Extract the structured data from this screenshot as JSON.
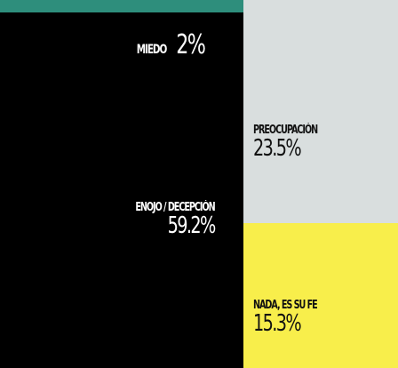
{
  "chart_data": {
    "type": "treemap",
    "title": "",
    "unit": "%",
    "items": [
      {
        "label": "MIEDO",
        "value": 2,
        "value_text": "2%",
        "color": "#2e8e7c",
        "text_color": "#ffffff"
      },
      {
        "label": "ENOJO / DECEPCIÓN",
        "value": 59.2,
        "value_text": "59.2%",
        "color": "#000000",
        "text_color": "#ffffff"
      },
      {
        "label": "PREOCUPACIÓN",
        "value": 23.5,
        "value_text": "23.5%",
        "color": "#d9dede",
        "text_color": "#111111"
      },
      {
        "label": "NADA, ES SU FE",
        "value": 15.3,
        "value_text": "15.3%",
        "color": "#f8ee4b",
        "text_color": "#111111"
      }
    ]
  }
}
